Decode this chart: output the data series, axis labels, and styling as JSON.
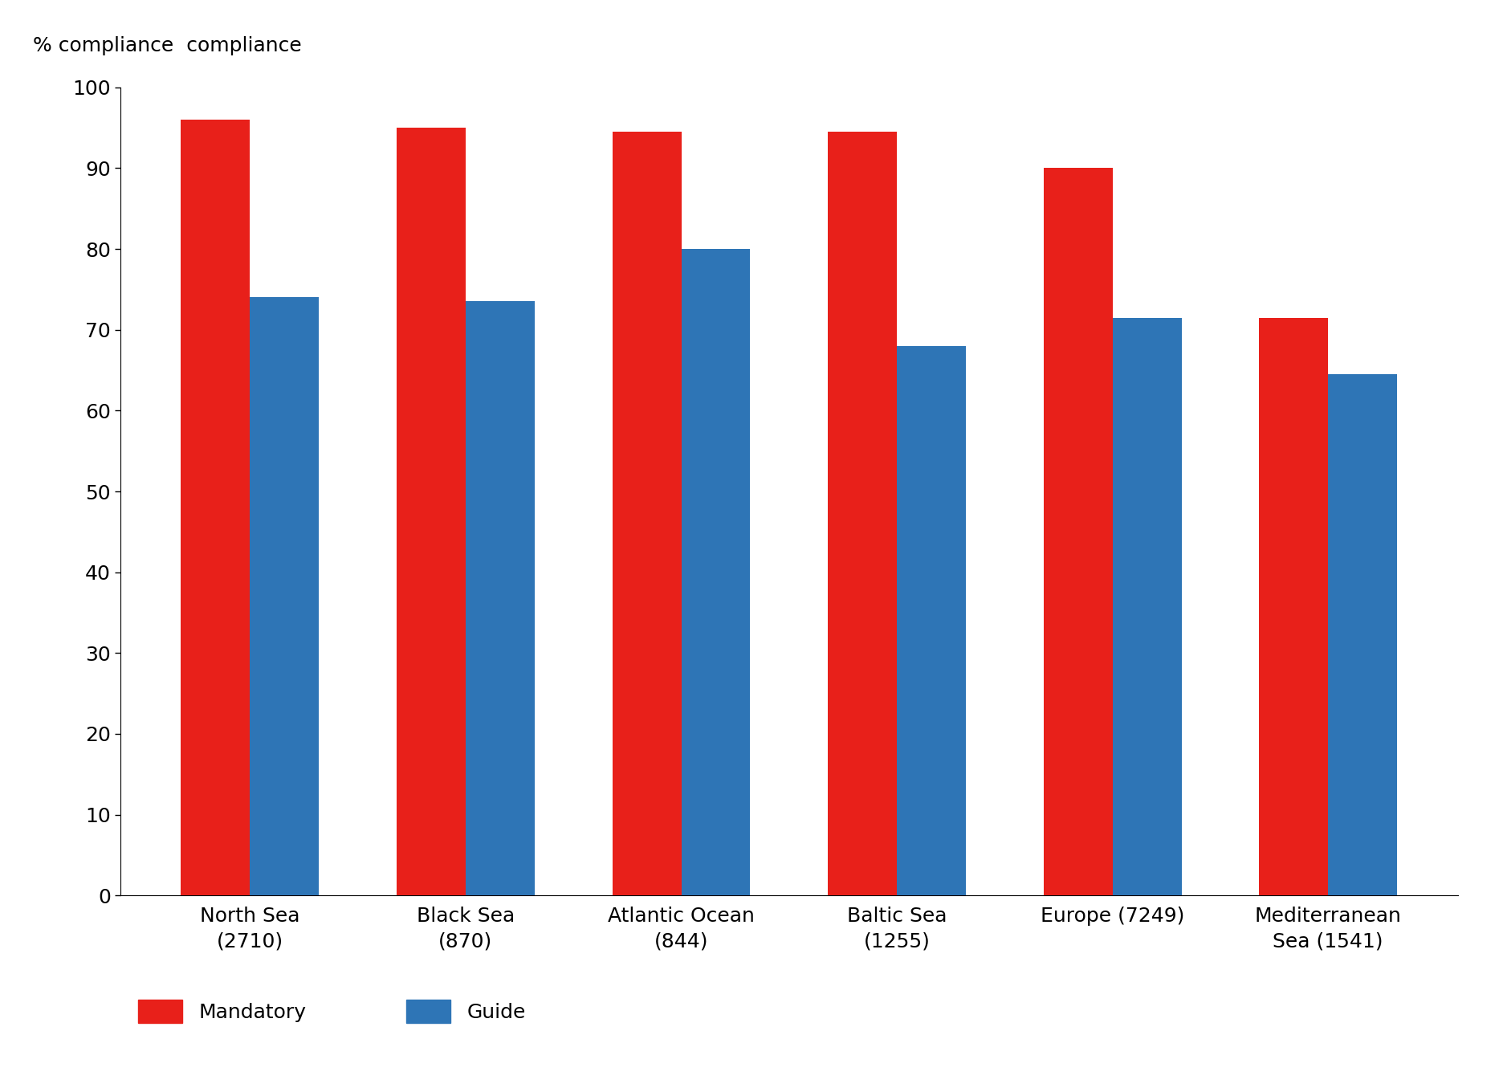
{
  "categories": [
    "North Sea\n(2710)",
    "Black Sea\n(870)",
    "Atlantic Ocean\n(844)",
    "Baltic Sea\n(1255)",
    "Europe (7249)",
    "Mediterranean\nSea (1541)"
  ],
  "mandatory_values": [
    96,
    95,
    94.5,
    94.5,
    90,
    71.5
  ],
  "guide_values": [
    74,
    73.5,
    80,
    68,
    71.5,
    64.5
  ],
  "mandatory_color": "#E8201A",
  "guide_color": "#2E75B6",
  "top_label": "% compliance  compliance",
  "ylim": [
    0,
    100
  ],
  "yticks": [
    0,
    10,
    20,
    30,
    40,
    50,
    60,
    70,
    80,
    90,
    100
  ],
  "legend_mandatory": "Mandatory",
  "legend_guide": "Guide",
  "bar_width": 0.32,
  "background_color": "#ffffff",
  "font_size": 18,
  "tick_font_size": 18,
  "label_font_size": 18
}
